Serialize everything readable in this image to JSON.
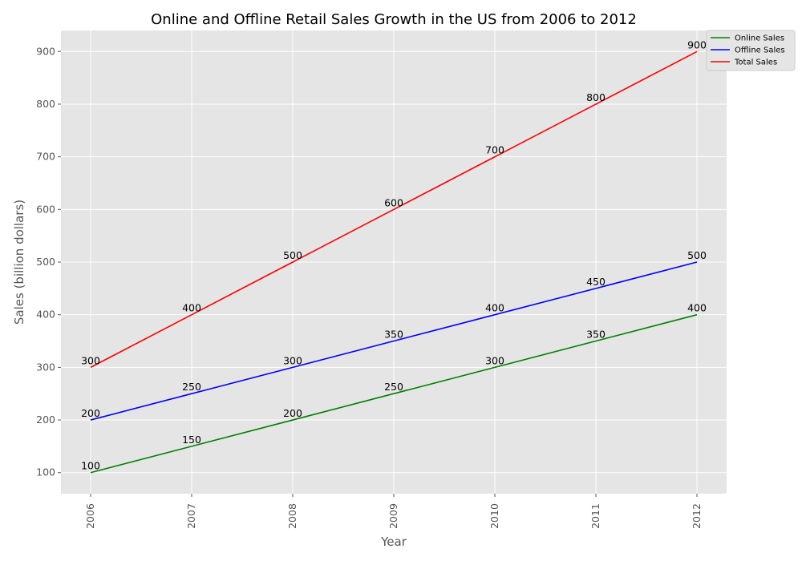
{
  "chart_data": {
    "type": "line",
    "title": "Online and Offline Retail Sales Growth in the US from 2006 to 2012",
    "xlabel": "Year",
    "ylabel": "Sales (billion dollars)",
    "categories": [
      "2006",
      "2007",
      "2008",
      "2009",
      "2010",
      "2011",
      "2012"
    ],
    "yticks": [
      100,
      200,
      300,
      400,
      500,
      600,
      700,
      800,
      900
    ],
    "ylim": [
      60,
      940
    ],
    "grid": true,
    "legend_position": "top-right",
    "series": [
      {
        "name": "Online Sales",
        "color": "#008000",
        "values": [
          100,
          150,
          200,
          250,
          300,
          350,
          400
        ]
      },
      {
        "name": "Offline Sales",
        "color": "#0000ff",
        "values": [
          200,
          250,
          300,
          350,
          400,
          450,
          500
        ]
      },
      {
        "name": "Total Sales",
        "color": "#ff0000",
        "values": [
          300,
          400,
          500,
          600,
          700,
          800,
          900
        ]
      }
    ]
  }
}
